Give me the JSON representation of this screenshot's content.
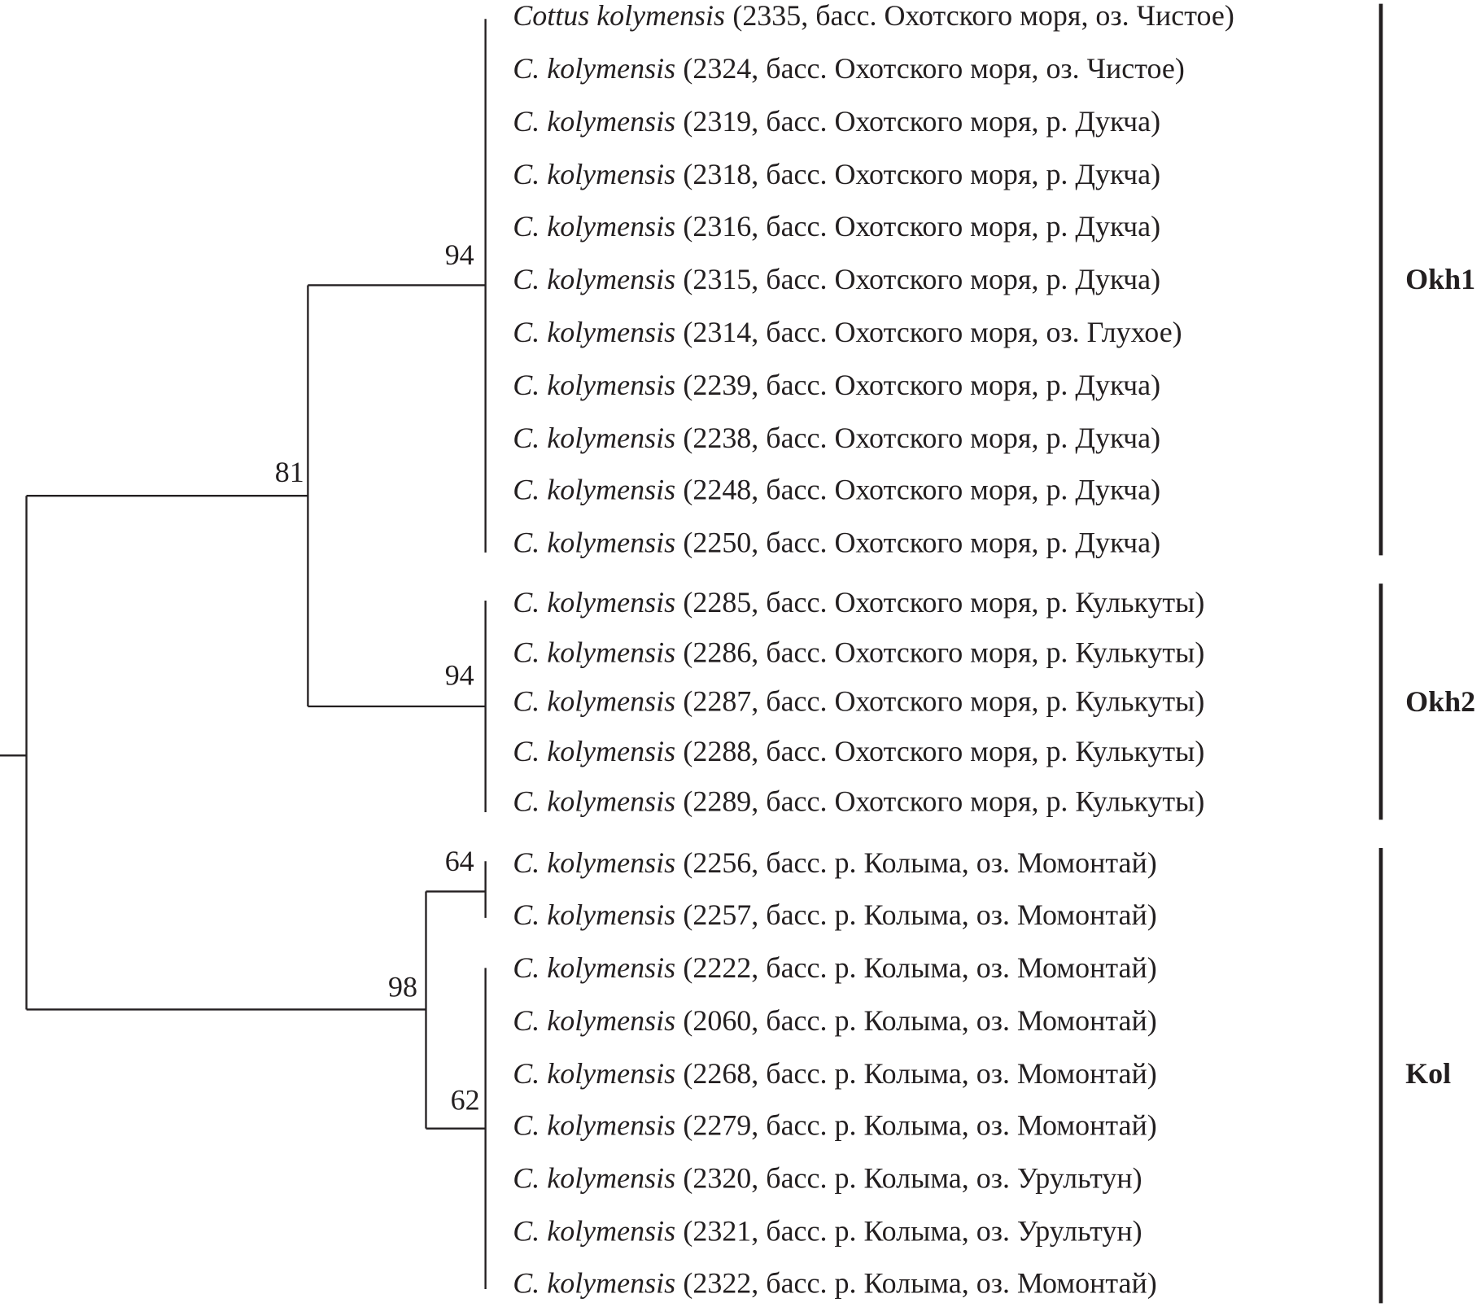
{
  "leaves": [
    {
      "species": "Cottus kolymensis",
      "info": "(2335, басс. Охотского моря, оз. Чистое)"
    },
    {
      "species": "C. kolymensis",
      "info": "(2324, басс. Охотского моря, оз. Чистое)"
    },
    {
      "species": "C. kolymensis",
      "info": "(2319, басс. Охотского моря,  р. Дукча)"
    },
    {
      "species": "C. kolymensis",
      "info": "(2318, басс. Охотского моря,  р. Дукча)"
    },
    {
      "species": "C. kolymensis",
      "info": "(2316, басс. Охотского моря,  р. Дукча)"
    },
    {
      "species": "C. kolymensis",
      "info": "(2315, басс. Охотского моря,  р. Дукча)"
    },
    {
      "species": "C. kolymensis",
      "info": "(2314, басс. Охотского моря,  оз. Глухое)"
    },
    {
      "species": "C. kolymensis",
      "info": "(2239, басс. Охотского моря,  р. Дукча)"
    },
    {
      "species": "C. kolymensis",
      "info": "(2238, басс. Охотского моря,  р. Дукча)"
    },
    {
      "species": "C. kolymensis",
      "info": "(2248, басс. Охотского моря,  р. Дукча)"
    },
    {
      "species": "C. kolymensis",
      "info": "(2250, басс. Охотского моря,  р. Дукча)"
    },
    {
      "species": "C. kolymensis",
      "info": "(2285, басс. Охотского моря,  р. Кулькуты)"
    },
    {
      "species": "C. kolymensis",
      "info": "(2286, басс. Охотского моря,  р. Кулькуты)"
    },
    {
      "species": "C. kolymensis",
      "info": "(2287, басс. Охотского моря,  р. Кулькуты)"
    },
    {
      "species": "C. kolymensis",
      "info": "(2288, басс. Охотского моря,  р. Кулькуты)"
    },
    {
      "species": "C. kolymensis",
      "info": "(2289, басс. Охотского моря,  р. Кулькуты)"
    },
    {
      "species": "C. kolymensis",
      "info": "(2256, басс. р. Колыма, оз. Момонтай)"
    },
    {
      "species": "C. kolymensis",
      "info": "(2257, басс. р. Колыма, оз. Момонтай)"
    },
    {
      "species": "C. kolymensis",
      "info": "(2222, басс. р. Колыма, оз. Момонтай)"
    },
    {
      "species": "C. kolymensis",
      "info": "(2060, басс. р. Колыма, оз. Момонтай)"
    },
    {
      "species": "C. kolymensis",
      "info": "(2268, басс. р. Колыма, оз. Момонтай)"
    },
    {
      "species": "C. kolymensis",
      "info": "(2279, басс. р. Колыма, оз. Момонтай)"
    },
    {
      "species": "C. kolymensis",
      "info": "(2320, басс. р. Колыма, оз. Урультун)"
    },
    {
      "species": "C. kolymensis",
      "info": "(2321, басс. р. Колыма, оз. Урультун)"
    },
    {
      "species": "C. kolymensis",
      "info": "(2322, басс. р. Колыма, оз. Момонтай)"
    }
  ],
  "bootstrap": [
    81,
    94,
    94,
    98,
    64,
    62
  ],
  "clades": [
    "Okh1",
    "Okh2",
    "Kol"
  ]
}
